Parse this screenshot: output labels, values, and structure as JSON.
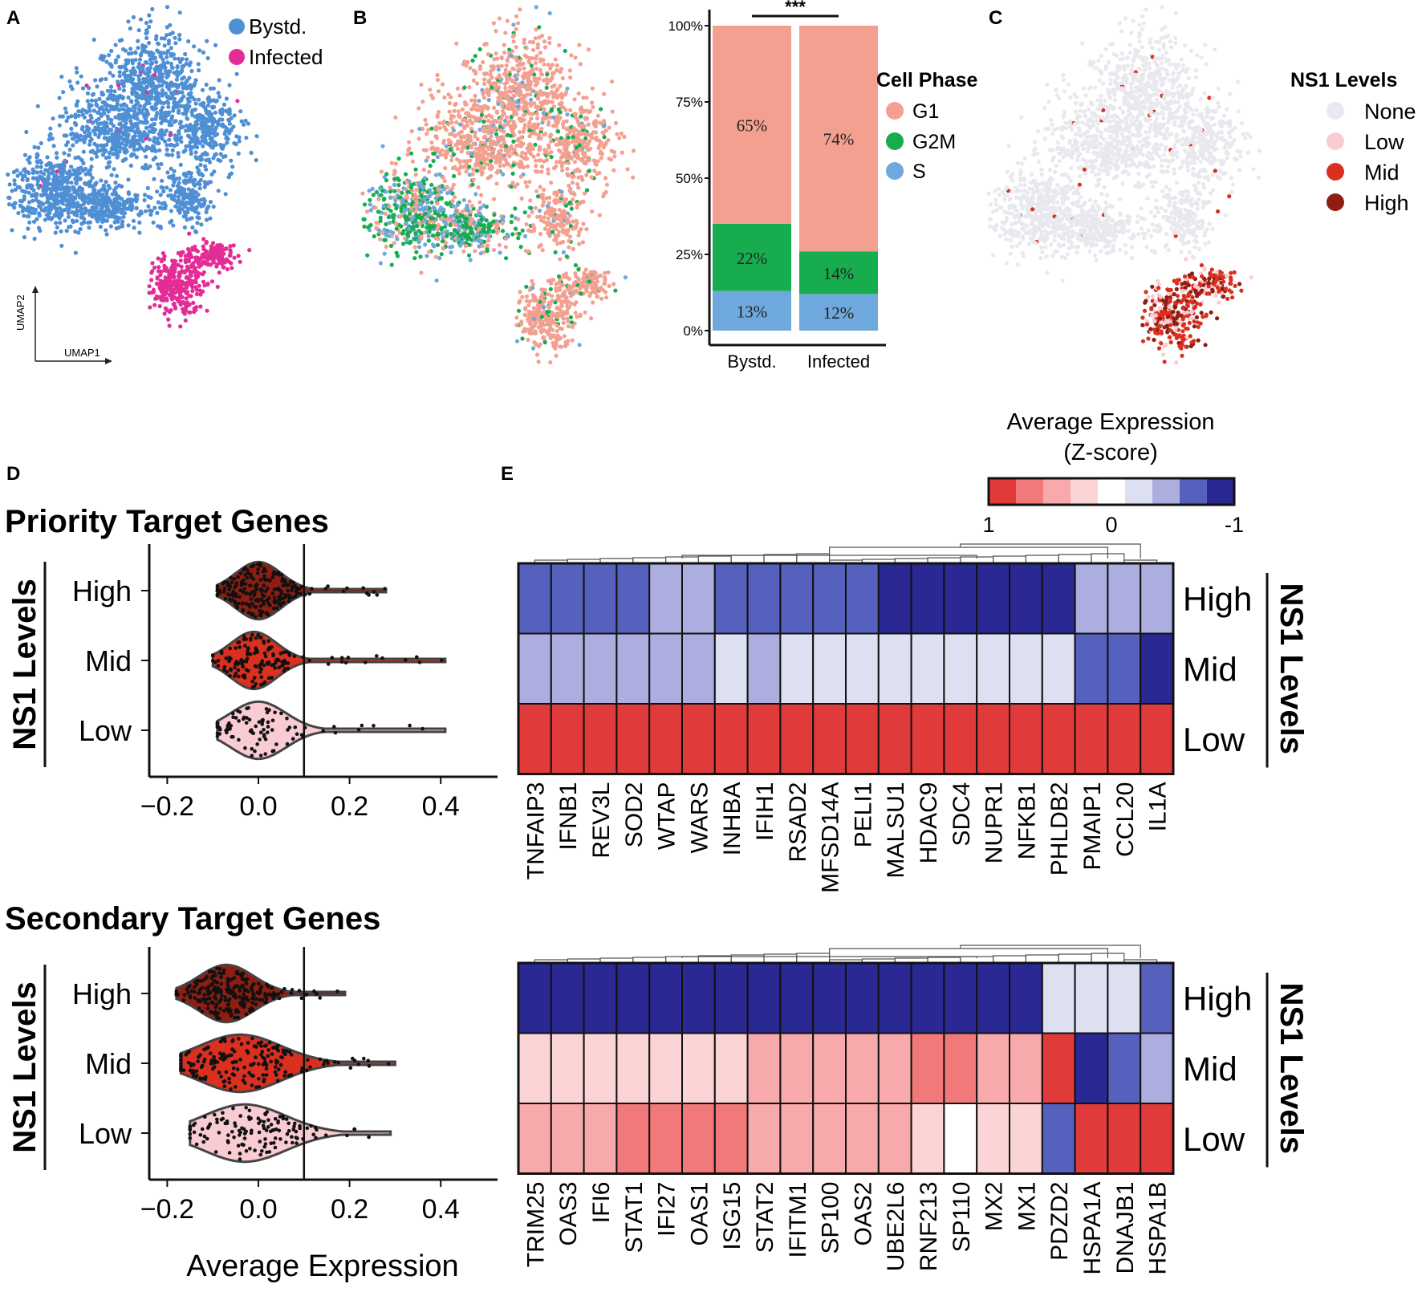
{
  "panels": {
    "A": "A",
    "B": "B",
    "C": "C",
    "D": "D",
    "E": "E"
  },
  "colors": {
    "bystander": "#4f8fd4",
    "infected": "#e42c96",
    "g1": "#f4a091",
    "g2m": "#17ad4e",
    "s": "#6fa8dc",
    "ns1_none": "#e8e8ee",
    "ns1_low": "#f9cbd3",
    "ns1_mid": "#d9301f",
    "ns1_high": "#8f1d12",
    "heat_scale": [
      "#e03a3a",
      "#f17979",
      "#f8a9ab",
      "#fbd4d5",
      "#ffffff",
      "#dde0f1",
      "#abaede",
      "#5561bd",
      "#2a2893"
    ]
  },
  "umap_a": {
    "legend": [
      "Bystd.",
      "Infected"
    ],
    "axis_y": "UMAP2",
    "axis_x": "UMAP1"
  },
  "umap_c": {
    "legend_title": "NS1 Levels",
    "legend": [
      "None",
      "Low",
      "Mid",
      "High"
    ]
  },
  "chart_data": [
    {
      "type": "bar",
      "stacked": true,
      "categories": [
        "Bystd.",
        "Infected"
      ],
      "series": [
        {
          "name": "S",
          "values": [
            13,
            12
          ]
        },
        {
          "name": "G2M",
          "values": [
            22,
            14
          ]
        },
        {
          "name": "G1",
          "values": [
            65,
            74
          ]
        }
      ],
      "value_labels": {
        "S": [
          "13%",
          "12%"
        ],
        "G2M": [
          "22%",
          "14%"
        ],
        "G1": [
          "65%",
          "74%"
        ]
      },
      "ylim": [
        0,
        100
      ],
      "yticks": [
        "0%",
        "25%",
        "50%",
        "75%",
        "100%"
      ],
      "legend_title": "Cell Phase",
      "legend": [
        "G1",
        "G2M",
        "S"
      ],
      "significance": "***"
    },
    {
      "type": "scatter",
      "subtype": "violin",
      "title": "Priority Target Genes",
      "ylabel": "NS1 Levels",
      "groups": [
        "High",
        "Mid",
        "Low"
      ],
      "xlim": [
        -0.25,
        0.52
      ],
      "xticks": [
        -0.2,
        0.0,
        0.2,
        0.4
      ],
      "xtick_labels": [
        "−0.2",
        "0.0",
        "0.2",
        "0.4"
      ],
      "threshold": 0.1,
      "violins": [
        {
          "group": "High",
          "min": -0.09,
          "max": 0.28,
          "median": 0.0,
          "spread": 0.05,
          "n": 220
        },
        {
          "group": "Mid",
          "min": -0.1,
          "max": 0.41,
          "median": -0.01,
          "spread": 0.05,
          "n": 140
        },
        {
          "group": "Low",
          "min": -0.09,
          "max": 0.41,
          "median": 0.0,
          "spread": 0.06,
          "n": 90
        }
      ]
    },
    {
      "type": "scatter",
      "subtype": "violin",
      "title": "Secondary Target Genes",
      "ylabel": "NS1 Levels",
      "xlabel": "Average Expression",
      "groups": [
        "High",
        "Mid",
        "Low"
      ],
      "xlim": [
        -0.25,
        0.52
      ],
      "xticks": [
        -0.2,
        0.0,
        0.2,
        0.4
      ],
      "xtick_labels": [
        "−0.2",
        "0.0",
        "0.2",
        "0.4"
      ],
      "threshold": 0.1,
      "violins": [
        {
          "group": "High",
          "min": -0.18,
          "max": 0.19,
          "median": -0.07,
          "spread": 0.06,
          "n": 240
        },
        {
          "group": "Mid",
          "min": -0.17,
          "max": 0.3,
          "median": -0.04,
          "spread": 0.09,
          "n": 190
        },
        {
          "group": "Low",
          "min": -0.15,
          "max": 0.29,
          "median": -0.03,
          "spread": 0.09,
          "n": 130
        }
      ]
    },
    {
      "type": "heatmap",
      "legend_title": "Average Expression",
      "legend_subtitle": "(Z-score)",
      "legend_ticks": [
        "1",
        "0",
        "-1"
      ],
      "rows": [
        "High",
        "Mid",
        "Low"
      ],
      "row_group_label": "NS1 Levels",
      "columns": [
        "TNFAIP3",
        "IFNB1",
        "REV3L",
        "SOD2",
        "WTAP",
        "WARS",
        "INHBA",
        "IFIH1",
        "RSAD2",
        "MFSD14A",
        "PELI1",
        "MALSU1",
        "HDAC9",
        "SDC4",
        "NUPR1",
        "NFKB1",
        "PHLDB2",
        "PMAIP1",
        "CCL20",
        "IL1A"
      ],
      "values": [
        [
          -0.75,
          -0.8,
          -0.8,
          -0.75,
          -0.55,
          -0.55,
          -0.8,
          -0.8,
          -0.8,
          -0.8,
          -0.75,
          -0.95,
          -0.95,
          -0.95,
          -0.95,
          -0.95,
          -0.95,
          -0.55,
          -0.55,
          -0.4
        ],
        [
          -0.5,
          -0.5,
          -0.5,
          -0.5,
          -0.45,
          -0.45,
          -0.35,
          -0.45,
          -0.35,
          -0.3,
          -0.3,
          -0.15,
          -0.15,
          -0.15,
          -0.15,
          -0.15,
          -0.35,
          -0.85,
          -0.85,
          -1.0
        ],
        [
          1,
          1,
          1,
          1,
          1,
          1,
          1,
          1,
          1,
          1,
          1,
          1,
          1,
          1,
          1,
          1,
          1,
          1,
          1,
          1
        ]
      ]
    },
    {
      "type": "heatmap",
      "rows": [
        "High",
        "Mid",
        "Low"
      ],
      "row_group_label": "NS1 Levels",
      "columns": [
        "TRIM25",
        "OAS3",
        "IFI6",
        "STAT1",
        "IFI27",
        "OAS1",
        "ISG15",
        "STAT2",
        "IFITM1",
        "SP100",
        "OAS2",
        "UBE2L6",
        "RNF213",
        "SP110",
        "MX2",
        "MX1",
        "PDZD2",
        "HSPA1A",
        "DNAJB1",
        "HSPA1B"
      ],
      "values": [
        [
          -1,
          -1,
          -1,
          -1,
          -1,
          -1,
          -1,
          -1,
          -1,
          -1,
          -1,
          -1,
          -1,
          -1,
          -1,
          -1,
          -0.35,
          -0.15,
          -0.35,
          -0.8
        ],
        [
          0.2,
          0.35,
          0.25,
          0.2,
          0.25,
          0.2,
          0.3,
          0.4,
          0.55,
          0.55,
          0.4,
          0.4,
          0.7,
          0.75,
          0.55,
          0.5,
          0.9,
          -1,
          -0.85,
          -0.5
        ],
        [
          0.6,
          0.5,
          0.6,
          0.7,
          0.8,
          0.8,
          0.75,
          0.45,
          0.4,
          0.45,
          0.4,
          0.55,
          0.15,
          0.0,
          0.35,
          0.25,
          -0.8,
          0.95,
          0.95,
          0.95
        ]
      ]
    }
  ]
}
